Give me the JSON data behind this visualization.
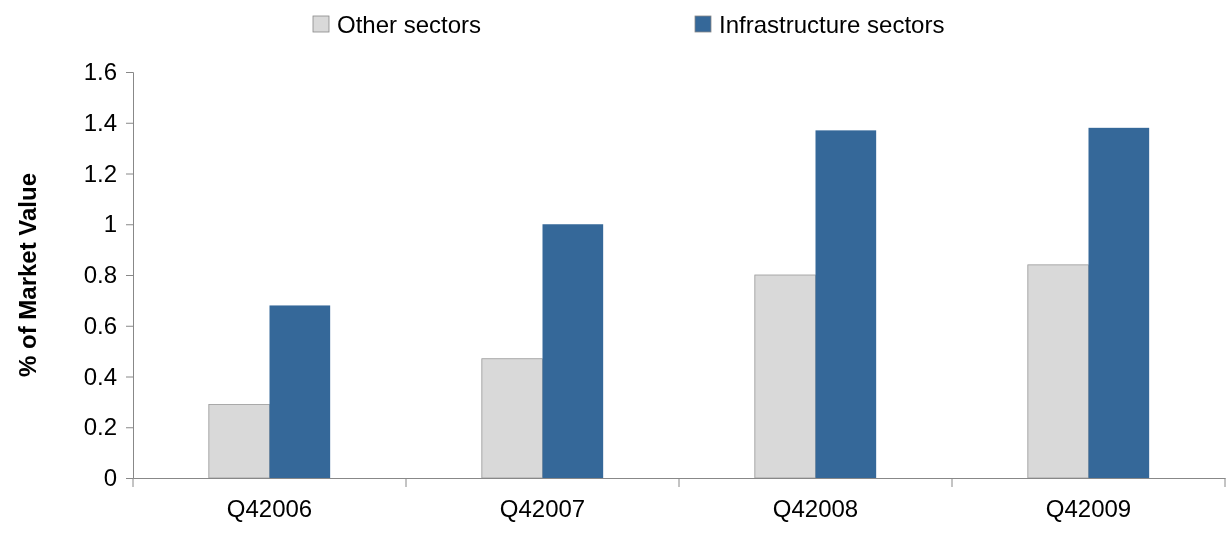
{
  "chart_data": {
    "type": "bar",
    "ylabel": "% of Market Value",
    "categories": [
      "Q42006",
      "Q42007",
      "Q42008",
      "Q42009"
    ],
    "series": [
      {
        "name": "Other sectors",
        "color": "#d9d9d9",
        "values": [
          0.29,
          0.47,
          0.8,
          0.84
        ]
      },
      {
        "name": "Infrastructure sectors",
        "color": "#356899",
        "values": [
          0.68,
          1.0,
          1.37,
          1.38
        ]
      }
    ],
    "ylim": [
      0,
      1.6
    ],
    "yticks": [
      0,
      0.2,
      0.4,
      0.6,
      0.8,
      1,
      1.2,
      1.4,
      1.6
    ],
    "grid": false,
    "legend": "top"
  }
}
